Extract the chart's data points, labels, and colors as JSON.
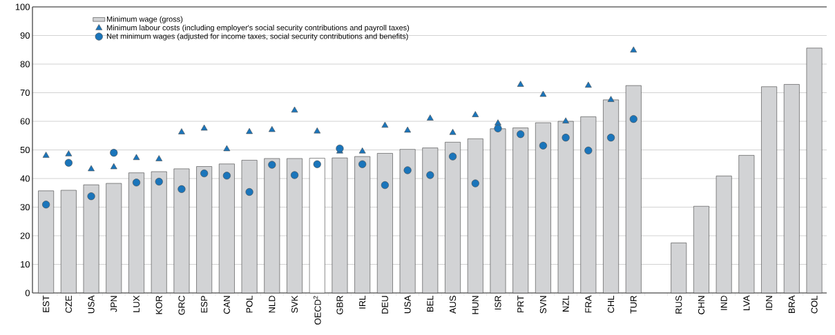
{
  "chart_data": {
    "type": "bar",
    "categories": [
      "EST",
      "CZE",
      "USA",
      "JPN",
      "LUX",
      "KOR",
      "GRC",
      "ESP",
      "CAN",
      "POL",
      "NLD",
      "SVK",
      "OECD$^{2}$",
      "GBR",
      "IRL",
      "DEU",
      "USA",
      "BEL",
      "AUS",
      "HUN",
      "ISR",
      "PRT",
      "SVN",
      "NZL",
      "FRA",
      "CHL",
      "TUR",
      null,
      "RUS",
      "CHN",
      "IND",
      "LVA",
      "IDN",
      "BRA",
      "COL"
    ],
    "series": [
      {
        "name": "Minimum wage (gross)",
        "color": "#d2d3d5",
        "colors": [
          "#d2d3d5",
          "#d2d3d5",
          "#d2d3d5",
          "#d2d3d5",
          "#d2d3d5",
          "#d2d3d5",
          "#d2d3d5",
          "#d2d3d5",
          "#d2d3d5",
          "#d2d3d5",
          "#d2d3d5",
          "#d2d3d5",
          "#ffffff",
          "#d2d3d5",
          "#d2d3d5",
          "#d2d3d5",
          "#d2d3d5",
          "#d2d3d5",
          "#d2d3d5",
          "#d2d3d5",
          "#d2d3d5",
          "#d2d3d5",
          "#d2d3d5",
          "#d2d3d5",
          "#d2d3d5",
          "#d2d3d5",
          "#d2d3d5",
          "#d2d3d5",
          "#d2d3d5",
          "#d2d3d5",
          "#d2d3d5",
          "#d2d3d5",
          "#d2d3d5",
          "#d2d3d5",
          "#d2d3d5"
        ],
        "values": [
          35.7,
          35.9,
          37.8,
          38.3,
          42,
          42.4,
          43.4,
          44.2,
          45.1,
          46.4,
          47,
          47,
          47.1,
          47.2,
          47.7,
          48.8,
          50.2,
          50.7,
          52.7,
          53.9,
          57.4,
          57.7,
          59.5,
          60,
          61.6,
          67.5,
          72.5,
          null,
          17.5,
          30.3,
          40.9,
          48.1,
          72.1,
          72.9,
          85.6
        ]
      },
      {
        "name": "Minimum labour costs (including employer's social security contributions and payroll taxes)",
        "type": "scatter",
        "marker": "triangle",
        "color": "#1a75bb",
        "values": [
          48,
          48.5,
          43.3,
          44,
          47.2,
          46.8,
          56.2,
          57.5,
          50.3,
          56.3,
          57,
          63.8,
          56.5,
          49.5,
          49.5,
          58.5,
          56.8,
          61,
          56,
          62.2,
          59.3,
          72.8,
          69.3,
          60,
          72.5,
          67.5,
          84.8,
          null,
          null,
          null,
          null,
          null,
          null,
          null,
          null
        ]
      },
      {
        "name": "Net minimum wages (adjusted for income taxes, social security contributions and benefits)",
        "type": "scatter",
        "marker": "circle",
        "color": "#1a75bb",
        "values": [
          30.9,
          45.5,
          33.8,
          49,
          38.6,
          38.9,
          36.3,
          41.8,
          41,
          35.3,
          44.8,
          41.2,
          45,
          50.5,
          45,
          37.7,
          42.9,
          41.2,
          47.7,
          38.3,
          57.5,
          55.5,
          51.5,
          54.3,
          49.8,
          54.3,
          60.8,
          null,
          null,
          null,
          null,
          null,
          null,
          null,
          null
        ]
      }
    ],
    "ylim": [
      0,
      100
    ],
    "yticks": [
      0,
      10,
      20,
      30,
      40,
      50,
      60,
      70,
      80,
      90,
      100
    ],
    "grid": "y",
    "legend": "top left"
  }
}
